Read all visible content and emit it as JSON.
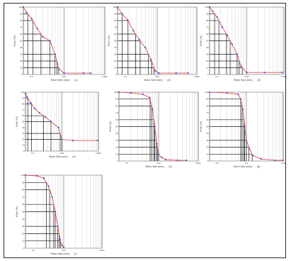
{
  "colors": {
    "curve": "#e84a52",
    "marker": "#5a56c8",
    "gridMajor": "#6a6a6a",
    "gridMinor": "#c9c9c9",
    "ref": "#1a1a1a"
  },
  "chart_data": [
    {
      "type": "line",
      "xscale": "log",
      "xlim": [
        0.01,
        1
      ],
      "ylim": [
        0,
        100
      ],
      "xlabel": "Sieve Size (mm)",
      "ylabel": "Finer (%)",
      "panel_label": "(1)",
      "series": [
        {
          "x": [
            0.01,
            0.012,
            0.016,
            0.022,
            0.03,
            0.045,
            0.06,
            0.075,
            0.1,
            0.3,
            0.45
          ],
          "y": [
            100,
            92,
            83,
            68,
            56,
            50,
            30,
            8,
            2,
            2,
            2
          ]
        }
      ],
      "xticks": [
        "0.1",
        "0.01",
        "0.001"
      ]
    },
    {
      "type": "line",
      "xscale": "log",
      "xlim": [
        0.01,
        1
      ],
      "ylim": [
        0,
        100
      ],
      "xlabel": "Sieve Size (mm)",
      "ylabel": "Finer (%)",
      "panel_label": "(2)",
      "series": [
        {
          "x": [
            0.01,
            0.013,
            0.018,
            0.025,
            0.035,
            0.05,
            0.07,
            0.09,
            0.11,
            0.3,
            0.6
          ],
          "y": [
            100,
            90,
            81,
            65,
            52,
            40,
            22,
            5,
            2,
            2,
            2
          ]
        }
      ],
      "xticks": [
        "0.1",
        "0.01",
        "0.001"
      ]
    },
    {
      "type": "line",
      "xscale": "log",
      "xlim": [
        0.01,
        1
      ],
      "ylim": [
        0,
        100
      ],
      "xlabel": "Sieve Size (mm)",
      "ylabel": "Finer (%)",
      "panel_label": "(3)",
      "series": [
        {
          "x": [
            0.01,
            0.012,
            0.016,
            0.022,
            0.03,
            0.04,
            0.055,
            0.07,
            0.1,
            0.3,
            0.9
          ],
          "y": [
            100,
            94,
            85,
            70,
            58,
            45,
            30,
            12,
            3,
            3,
            3
          ]
        }
      ],
      "xticks": [
        "0.1",
        "0.01",
        "0.001"
      ]
    },
    {
      "type": "line",
      "xscale": "log",
      "xlim": [
        0.01,
        1
      ],
      "ylim": [
        0,
        100
      ],
      "xlabel": "Sieve Size (mm)",
      "ylabel": "Finer (%)",
      "panel_label": "(4)",
      "series": [
        {
          "x": [
            0.01,
            0.011,
            0.014,
            0.018,
            0.024,
            0.035,
            0.05,
            0.08,
            0.1,
            0.2,
            0.95
          ],
          "y": [
            98,
            92,
            82,
            72,
            65,
            58,
            50,
            40,
            20,
            18,
            18
          ]
        }
      ],
      "xticks": [
        "0.1",
        "0.01",
        "0.001"
      ]
    },
    {
      "type": "line",
      "xscale": "log",
      "xlim": [
        0.01,
        1
      ],
      "ylim": [
        0,
        100
      ],
      "xlabel": "Sieve Size (mm)",
      "ylabel": "Finer (%)",
      "panel_label": "(5)",
      "series": [
        {
          "x": [
            0.01,
            0.02,
            0.04,
            0.06,
            0.07,
            0.08,
            0.09,
            0.1,
            0.12,
            0.15,
            0.3,
            0.5
          ],
          "y": [
            100,
            99,
            97,
            92,
            75,
            50,
            25,
            10,
            5,
            2,
            1,
            1
          ]
        }
      ],
      "xticks": [
        "0.1",
        "0.01",
        "0.001"
      ]
    },
    {
      "type": "line",
      "xscale": "log",
      "xlim": [
        0.01,
        1
      ],
      "ylim": [
        0,
        100
      ],
      "xlabel": "Sieve Size (mm)",
      "ylabel": "Finer (%)",
      "panel_label": "(6)",
      "series": [
        {
          "x": [
            0.01,
            0.03,
            0.06,
            0.07,
            0.08,
            0.09,
            0.1,
            0.12,
            0.15,
            0.25,
            0.6,
            1
          ],
          "y": [
            100,
            99,
            97,
            90,
            75,
            50,
            30,
            18,
            8,
            3,
            1,
            1
          ]
        }
      ],
      "xticks": [
        "1.0",
        "0.1",
        "0.01"
      ]
    },
    {
      "type": "line",
      "xscale": "log",
      "xlim": [
        0.01,
        1
      ],
      "ylim": [
        0,
        100
      ],
      "xlabel": "Sieve Size (mm)",
      "ylabel": "Finer (%)",
      "panel_label": "(7)",
      "series": [
        {
          "x": [
            0.01,
            0.02,
            0.03,
            0.04,
            0.05,
            0.06,
            0.07,
            0.08,
            0.09,
            0.1
          ],
          "y": [
            100,
            99,
            96,
            85,
            70,
            50,
            30,
            12,
            4,
            1
          ]
        }
      ],
      "xticks": [
        "0.1",
        "0.01",
        "0.001"
      ]
    }
  ]
}
